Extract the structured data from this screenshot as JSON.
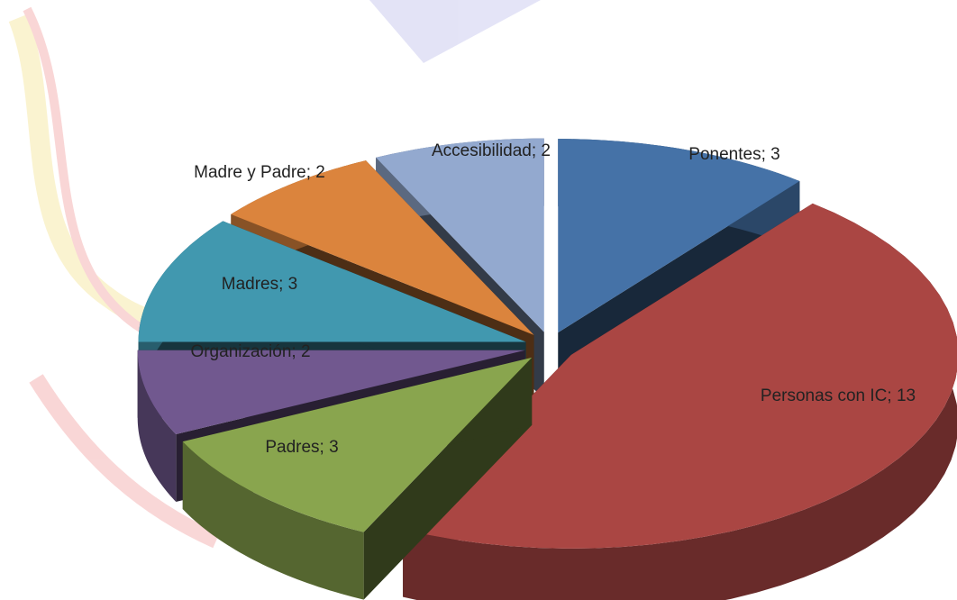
{
  "chart_data": {
    "type": "pie3d",
    "values": [
      3,
      13,
      3,
      2,
      3,
      2,
      2
    ],
    "value_labels": [
      "Ponentes; 3",
      "Personas con IC; 13",
      "Padres; 3",
      "Organización; 2",
      "Madres; 3",
      "Madre y Padre; 2",
      "Accesibilidad; 2"
    ],
    "colors": [
      "#4572a7",
      "#aa4643",
      "#89a54e",
      "#71588f",
      "#4198af",
      "#db843d",
      "#93a9cf"
    ],
    "exploded": true
  }
}
